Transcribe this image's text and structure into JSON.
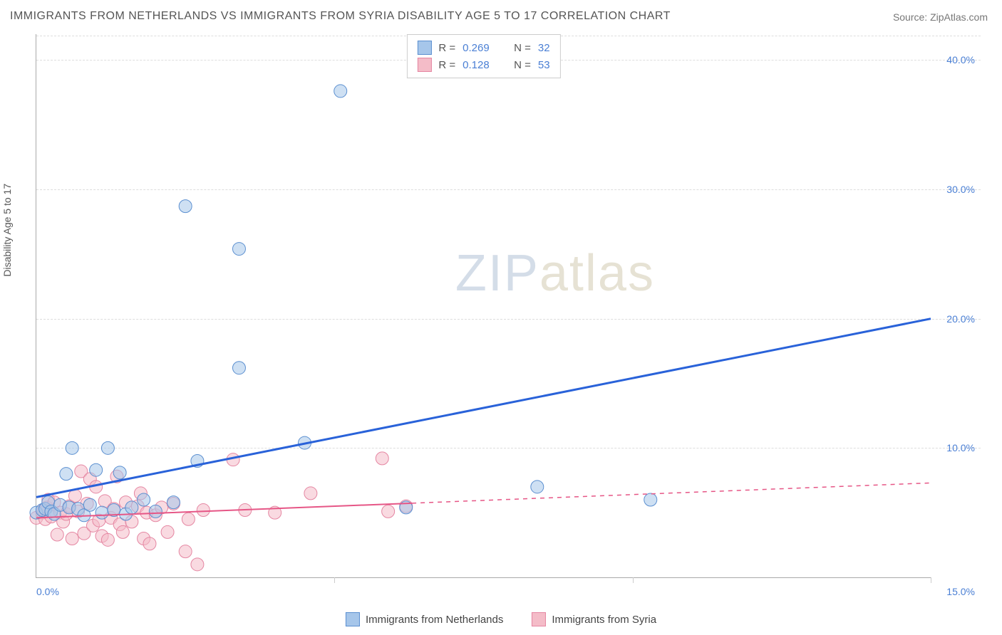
{
  "title": "IMMIGRANTS FROM NETHERLANDS VS IMMIGRANTS FROM SYRIA DISABILITY AGE 5 TO 17 CORRELATION CHART",
  "source": "Source: ZipAtlas.com",
  "y_axis_label": "Disability Age 5 to 17",
  "watermark_zip": "ZIP",
  "watermark_atlas": "atlas",
  "chart": {
    "type": "scatter",
    "xlim": [
      0,
      15
    ],
    "ylim": [
      0,
      42
    ],
    "x_ticks": [
      0,
      5,
      10,
      15
    ],
    "x_tick_labels": [
      "0.0%",
      "",
      "",
      "15.0%"
    ],
    "y_ticks": [
      10,
      20,
      30,
      40
    ],
    "y_tick_labels": [
      "10.0%",
      "20.0%",
      "30.0%",
      "40.0%"
    ],
    "grid_color": "#dddddd",
    "axis_color": "#aaaaaa",
    "background_color": "#ffffff",
    "marker_radius": 9,
    "marker_opacity": 0.55,
    "line_width_blue": 3,
    "line_width_pink": 2,
    "series": [
      {
        "name": "Immigrants from Netherlands",
        "fill_color": "#a6c6ea",
        "stroke_color": "#5b8fd0",
        "line_color": "#2962d9",
        "correlation_r": "0.269",
        "n": "32",
        "regression": {
          "x1": 0,
          "y1": 6.2,
          "x2": 15,
          "y2": 20.0,
          "dashed_from_x": null
        },
        "points": [
          [
            0.0,
            5.0
          ],
          [
            0.1,
            5.2
          ],
          [
            0.15,
            5.3
          ],
          [
            0.2,
            5.8
          ],
          [
            0.25,
            5.1
          ],
          [
            0.3,
            4.9
          ],
          [
            0.4,
            5.6
          ],
          [
            0.5,
            8.0
          ],
          [
            0.55,
            5.4
          ],
          [
            0.6,
            10.0
          ],
          [
            0.7,
            5.3
          ],
          [
            0.8,
            4.8
          ],
          [
            0.9,
            5.6
          ],
          [
            1.0,
            8.3
          ],
          [
            1.1,
            5.0
          ],
          [
            1.2,
            10.0
          ],
          [
            1.3,
            5.2
          ],
          [
            1.4,
            8.1
          ],
          [
            1.5,
            4.9
          ],
          [
            1.6,
            5.4
          ],
          [
            1.8,
            6.0
          ],
          [
            2.0,
            5.1
          ],
          [
            2.3,
            5.8
          ],
          [
            2.5,
            28.7
          ],
          [
            2.7,
            9.0
          ],
          [
            3.4,
            25.4
          ],
          [
            3.4,
            16.2
          ],
          [
            4.5,
            10.4
          ],
          [
            5.1,
            37.6
          ],
          [
            6.2,
            5.4
          ],
          [
            8.4,
            7.0
          ],
          [
            10.3,
            6.0
          ]
        ]
      },
      {
        "name": "Immigrants from Syria",
        "fill_color": "#f4bcc8",
        "stroke_color": "#e586a2",
        "line_color": "#e65686",
        "correlation_r": "0.128",
        "n": "53",
        "regression": {
          "x1": 0,
          "y1": 4.6,
          "x2": 15,
          "y2": 7.3,
          "dashed_from_x": 6.3
        },
        "points": [
          [
            0.0,
            4.6
          ],
          [
            0.1,
            5.0
          ],
          [
            0.12,
            5.2
          ],
          [
            0.15,
            4.5
          ],
          [
            0.18,
            5.4
          ],
          [
            0.2,
            6.0
          ],
          [
            0.25,
            4.7
          ],
          [
            0.3,
            5.8
          ],
          [
            0.35,
            3.3
          ],
          [
            0.4,
            5.0
          ],
          [
            0.45,
            4.3
          ],
          [
            0.5,
            4.9
          ],
          [
            0.55,
            5.5
          ],
          [
            0.6,
            3.0
          ],
          [
            0.65,
            6.3
          ],
          [
            0.7,
            5.1
          ],
          [
            0.75,
            8.2
          ],
          [
            0.8,
            3.4
          ],
          [
            0.85,
            5.7
          ],
          [
            0.9,
            7.6
          ],
          [
            0.95,
            4.0
          ],
          [
            1.0,
            7.0
          ],
          [
            1.05,
            4.4
          ],
          [
            1.1,
            3.2
          ],
          [
            1.15,
            5.9
          ],
          [
            1.2,
            2.9
          ],
          [
            1.25,
            4.6
          ],
          [
            1.3,
            5.3
          ],
          [
            1.35,
            7.8
          ],
          [
            1.4,
            4.1
          ],
          [
            1.45,
            3.5
          ],
          [
            1.5,
            5.8
          ],
          [
            1.6,
            4.3
          ],
          [
            1.7,
            5.5
          ],
          [
            1.75,
            6.5
          ],
          [
            1.8,
            3.0
          ],
          [
            1.85,
            5.0
          ],
          [
            1.9,
            2.6
          ],
          [
            2.0,
            4.8
          ],
          [
            2.1,
            5.4
          ],
          [
            2.2,
            3.5
          ],
          [
            2.3,
            5.7
          ],
          [
            2.5,
            2.0
          ],
          [
            2.55,
            4.5
          ],
          [
            2.7,
            1.0
          ],
          [
            2.8,
            5.2
          ],
          [
            3.3,
            9.1
          ],
          [
            3.5,
            5.2
          ],
          [
            4.0,
            5.0
          ],
          [
            4.6,
            6.5
          ],
          [
            5.8,
            9.2
          ],
          [
            5.9,
            5.1
          ],
          [
            6.2,
            5.5
          ]
        ]
      }
    ]
  },
  "stats_legend": {
    "r_label": "R =",
    "n_label": "N ="
  },
  "bottom_legend": [
    {
      "label": "Immigrants from Netherlands",
      "fill": "#a6c6ea",
      "stroke": "#5b8fd0"
    },
    {
      "label": "Immigrants from Syria",
      "fill": "#f4bcc8",
      "stroke": "#e586a2"
    }
  ]
}
